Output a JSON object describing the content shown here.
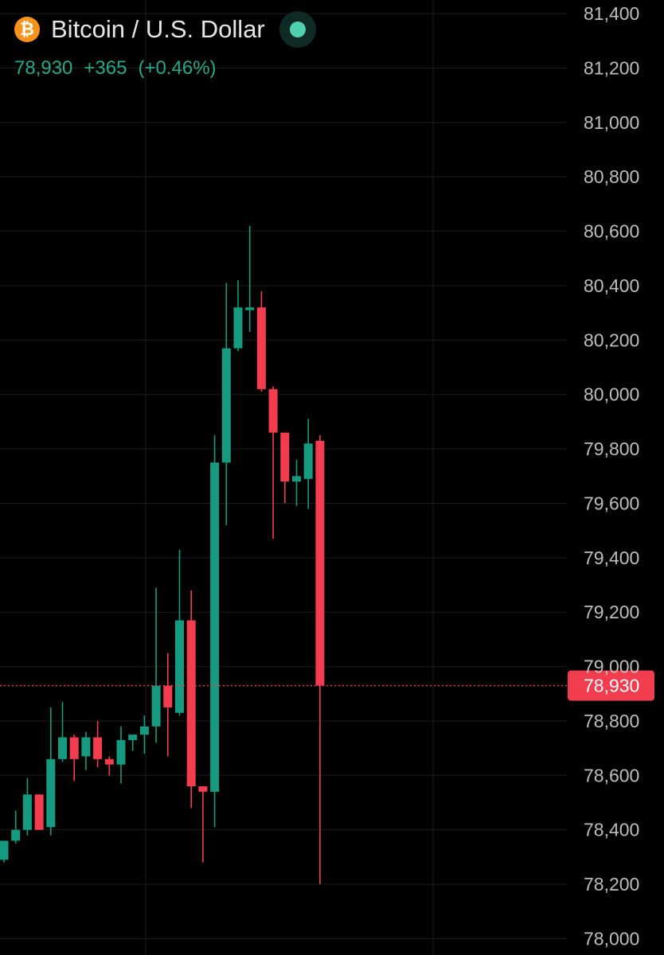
{
  "header": {
    "coin_glyph": "₿",
    "title": "Bitcoin / U.S. Dollar",
    "last_price": "78,930",
    "change": "+365",
    "change_pct": "(+0.46%)",
    "status_icon": "live-status-dot"
  },
  "colors": {
    "background": "#000000",
    "up": "#179b80",
    "down": "#f23d4f",
    "grid": "#1c1c1c",
    "axis_text": "#bdbdbd",
    "price_line": "#f23d4f",
    "status": "#4fd1b0",
    "coin": "#f7931a"
  },
  "chart_data": {
    "type": "candlestick",
    "ylim": [
      77940,
      81450
    ],
    "yticks": [
      78000,
      78200,
      78400,
      78600,
      78800,
      79000,
      79200,
      79400,
      79600,
      79800,
      80000,
      80200,
      80400,
      80600,
      80800,
      81000,
      81200,
      81400
    ],
    "ytick_labels": [
      "78,000",
      "78,200",
      "78,400",
      "78,600",
      "78,800",
      "79,000",
      "79,200",
      "79,400",
      "79,600",
      "79,800",
      "80,000",
      "80,200",
      "80,400",
      "80,600",
      "80,800",
      "81,000",
      "81,200",
      "81,400"
    ],
    "grid": true,
    "current_price": 78930,
    "current_price_label": "78,930",
    "candles": [
      {
        "o": 78290,
        "h": 78360,
        "l": 78280,
        "c": 78360
      },
      {
        "o": 78360,
        "h": 78470,
        "l": 78350,
        "c": 78400
      },
      {
        "o": 78400,
        "h": 78590,
        "l": 78380,
        "c": 78530
      },
      {
        "o": 78530,
        "h": 78530,
        "l": 78400,
        "c": 78400
      },
      {
        "o": 78410,
        "h": 78850,
        "l": 78380,
        "c": 78660
      },
      {
        "o": 78660,
        "h": 78870,
        "l": 78650,
        "c": 78740
      },
      {
        "o": 78740,
        "h": 78750,
        "l": 78580,
        "c": 78660
      },
      {
        "o": 78670,
        "h": 78760,
        "l": 78620,
        "c": 78740
      },
      {
        "o": 78740,
        "h": 78800,
        "l": 78630,
        "c": 78660
      },
      {
        "o": 78660,
        "h": 78670,
        "l": 78600,
        "c": 78640
      },
      {
        "o": 78640,
        "h": 78780,
        "l": 78570,
        "c": 78730
      },
      {
        "o": 78730,
        "h": 78750,
        "l": 78690,
        "c": 78750
      },
      {
        "o": 78750,
        "h": 78820,
        "l": 78680,
        "c": 78780
      },
      {
        "o": 78780,
        "h": 79290,
        "l": 78720,
        "c": 78930
      },
      {
        "o": 78930,
        "h": 79050,
        "l": 78670,
        "c": 78850
      },
      {
        "o": 78830,
        "h": 79430,
        "l": 78820,
        "c": 79170
      },
      {
        "o": 79170,
        "h": 79280,
        "l": 78480,
        "c": 78560
      },
      {
        "o": 78560,
        "h": 78560,
        "l": 78280,
        "c": 78540
      },
      {
        "o": 78540,
        "h": 79850,
        "l": 78410,
        "c": 79750
      },
      {
        "o": 79750,
        "h": 80410,
        "l": 79520,
        "c": 80170
      },
      {
        "o": 80170,
        "h": 80420,
        "l": 80160,
        "c": 80320
      },
      {
        "o": 80310,
        "h": 80620,
        "l": 80230,
        "c": 80320
      },
      {
        "o": 80320,
        "h": 80380,
        "l": 80010,
        "c": 80020
      },
      {
        "o": 80020,
        "h": 80030,
        "l": 79470,
        "c": 79860
      },
      {
        "o": 79860,
        "h": 79860,
        "l": 79600,
        "c": 79680
      },
      {
        "o": 79680,
        "h": 79760,
        "l": 79590,
        "c": 79700
      },
      {
        "o": 79690,
        "h": 79910,
        "l": 79580,
        "c": 79820
      },
      {
        "o": 79830,
        "h": 79850,
        "l": 78200,
        "c": 78930
      }
    ]
  }
}
